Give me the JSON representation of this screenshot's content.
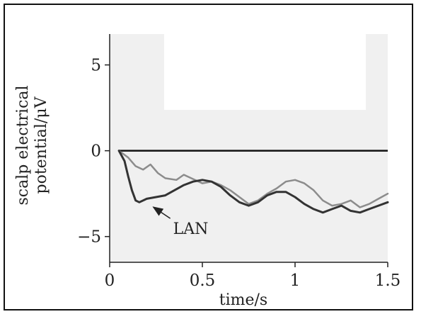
{
  "chart_data": {
    "type": "line",
    "xlabel": "time/s",
    "ylabel_line1": "scalp electrical",
    "ylabel_line2": "potential/μV",
    "xlim": [
      0,
      1.5
    ],
    "ylim": [
      -6.5,
      6.8
    ],
    "x_ticks": [
      0,
      0.5,
      1,
      1.5
    ],
    "x_tick_labels": [
      "0",
      "0.5",
      "1",
      "1.5"
    ],
    "y_ticks": [
      5,
      0,
      -5
    ],
    "y_tick_labels": [
      "5",
      "0",
      "−5"
    ],
    "zero_line": 0,
    "shade_below": 0,
    "series": [
      {
        "name": "LAN",
        "color": "#333333",
        "points": [
          [
            0.05,
            0
          ],
          [
            0.08,
            -0.6
          ],
          [
            0.1,
            -1.5
          ],
          [
            0.12,
            -2.3
          ],
          [
            0.14,
            -2.9
          ],
          [
            0.16,
            -3.0
          ],
          [
            0.2,
            -2.8
          ],
          [
            0.25,
            -2.7
          ],
          [
            0.3,
            -2.6
          ],
          [
            0.35,
            -2.3
          ],
          [
            0.4,
            -2.0
          ],
          [
            0.45,
            -1.8
          ],
          [
            0.5,
            -1.7
          ],
          [
            0.55,
            -1.8
          ],
          [
            0.6,
            -2.1
          ],
          [
            0.65,
            -2.6
          ],
          [
            0.7,
            -3.0
          ],
          [
            0.75,
            -3.2
          ],
          [
            0.8,
            -3.0
          ],
          [
            0.85,
            -2.6
          ],
          [
            0.9,
            -2.4
          ],
          [
            0.95,
            -2.4
          ],
          [
            1.0,
            -2.7
          ],
          [
            1.05,
            -3.1
          ],
          [
            1.1,
            -3.4
          ],
          [
            1.15,
            -3.6
          ],
          [
            1.2,
            -3.4
          ],
          [
            1.25,
            -3.2
          ],
          [
            1.3,
            -3.5
          ],
          [
            1.35,
            -3.6
          ],
          [
            1.4,
            -3.4
          ],
          [
            1.45,
            -3.2
          ],
          [
            1.5,
            -3.0
          ]
        ]
      },
      {
        "name": "",
        "color": "#8c8c8c",
        "points": [
          [
            0.05,
            0
          ],
          [
            0.1,
            -0.4
          ],
          [
            0.14,
            -0.9
          ],
          [
            0.18,
            -1.1
          ],
          [
            0.22,
            -0.8
          ],
          [
            0.26,
            -1.3
          ],
          [
            0.3,
            -1.6
          ],
          [
            0.36,
            -1.7
          ],
          [
            0.4,
            -1.4
          ],
          [
            0.44,
            -1.6
          ],
          [
            0.5,
            -1.9
          ],
          [
            0.55,
            -1.8
          ],
          [
            0.6,
            -2.0
          ],
          [
            0.65,
            -2.3
          ],
          [
            0.7,
            -2.7
          ],
          [
            0.75,
            -3.1
          ],
          [
            0.8,
            -2.9
          ],
          [
            0.85,
            -2.5
          ],
          [
            0.9,
            -2.2
          ],
          [
            0.95,
            -1.8
          ],
          [
            1.0,
            -1.7
          ],
          [
            1.05,
            -1.9
          ],
          [
            1.1,
            -2.3
          ],
          [
            1.15,
            -2.9
          ],
          [
            1.2,
            -3.2
          ],
          [
            1.25,
            -3.1
          ],
          [
            1.3,
            -2.9
          ],
          [
            1.35,
            -3.3
          ],
          [
            1.4,
            -3.1
          ],
          [
            1.45,
            -2.8
          ],
          [
            1.5,
            -2.5
          ]
        ]
      }
    ],
    "annotations": [
      {
        "text": "LAN",
        "points_to": [
          0.22,
          -3.2
        ]
      }
    ]
  }
}
